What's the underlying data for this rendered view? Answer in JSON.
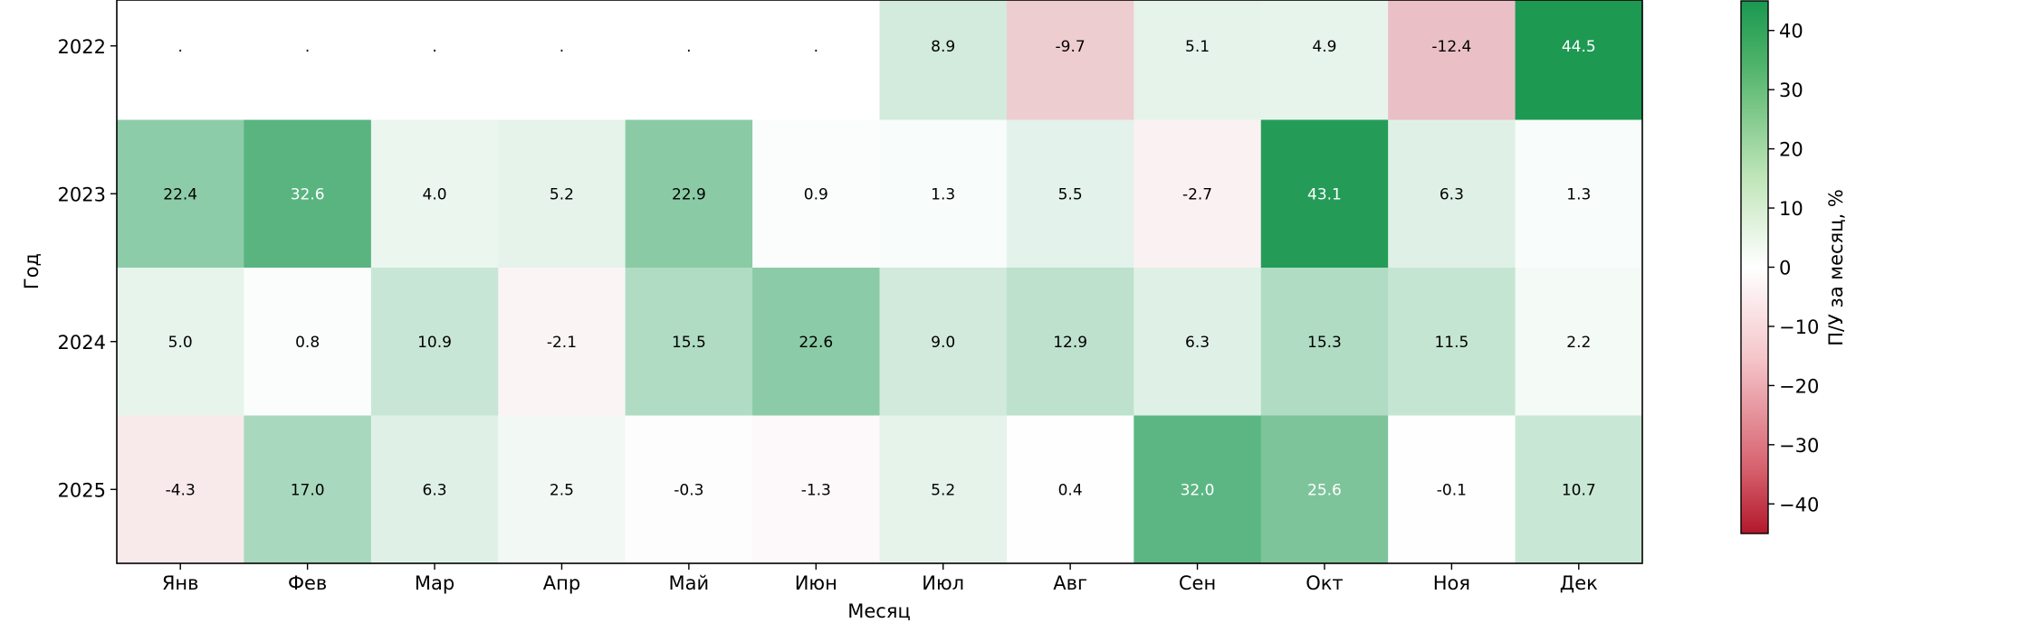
{
  "chart_data": {
    "type": "heatmap",
    "title": "",
    "xlabel": "Месяц",
    "ylabel": "Год",
    "x_categories": [
      "Янв",
      "Фев",
      "Мар",
      "Апр",
      "Май",
      "Июн",
      "Июл",
      "Авг",
      "Сен",
      "Окт",
      "Ноя",
      "Дек"
    ],
    "y_categories": [
      "2022",
      "2023",
      "2024",
      "2025"
    ],
    "missing_label": ".",
    "values": [
      [
        null,
        null,
        null,
        null,
        null,
        null,
        8.9,
        -9.7,
        5.1,
        4.9,
        -12.4,
        44.5
      ],
      [
        22.4,
        32.6,
        4.0,
        5.2,
        22.9,
        0.9,
        1.3,
        5.5,
        -2.7,
        43.1,
        6.3,
        1.3
      ],
      [
        5.0,
        0.8,
        10.9,
        -2.1,
        15.5,
        22.6,
        9.0,
        12.9,
        6.3,
        15.3,
        11.5,
        2.2
      ],
      [
        -4.3,
        17.0,
        6.3,
        2.5,
        -0.3,
        -1.3,
        5.2,
        0.4,
        32.0,
        25.6,
        -0.1,
        10.7
      ]
    ],
    "value_format_decimals": 1,
    "colorbar": {
      "label": "П/У за месяц, %",
      "range": [
        -45,
        45
      ],
      "ticks": [
        -40,
        -30,
        -20,
        -10,
        0,
        10,
        20,
        30,
        40
      ],
      "tick_labels": [
        "−40",
        "−30",
        "−20",
        "−10",
        "0",
        "10",
        "20",
        "30",
        "40"
      ],
      "colors": {
        "negative": "#b2182b",
        "zero": "#ffffff",
        "positive": "#1a9850"
      }
    },
    "text_color_dark": "#000000",
    "text_color_light": "#ffffff"
  }
}
